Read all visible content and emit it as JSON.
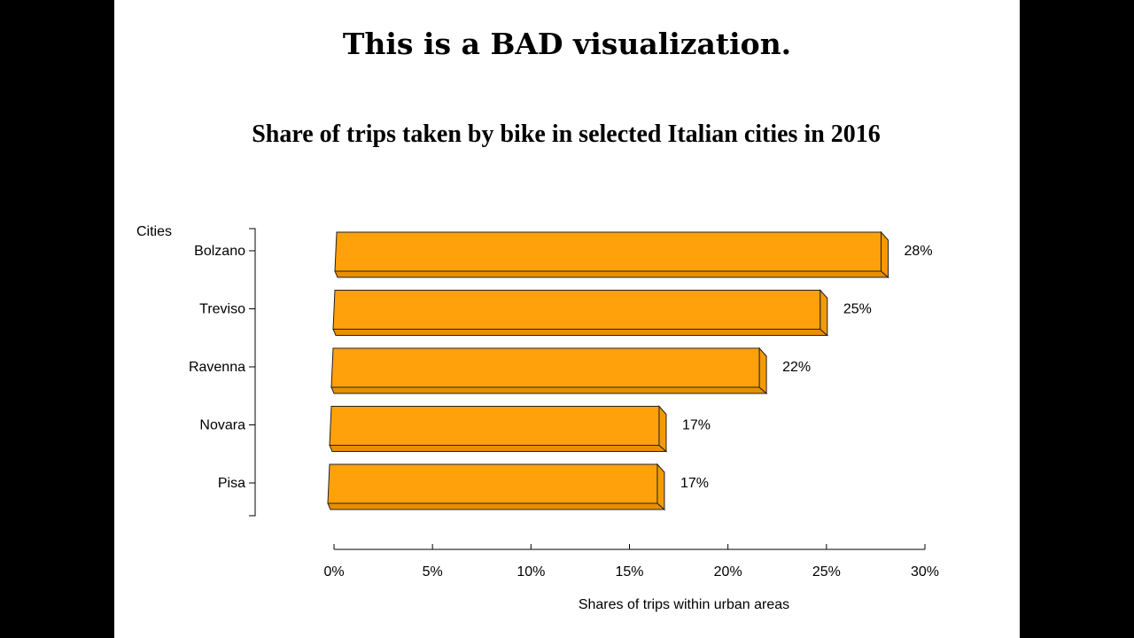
{
  "headline": "This is a BAD visualization.",
  "chart_data": {
    "type": "bar",
    "orientation": "horizontal",
    "style": "3d",
    "title": "Share of trips taken by bike in selected Italian cities in 2016",
    "ylabel": "Cities",
    "xlabel": "Shares of trips within urban areas",
    "categories": [
      "Bolzano",
      "Treviso",
      "Ravenna",
      "Novara",
      "Pisa"
    ],
    "values": [
      28,
      25,
      22,
      17,
      17
    ],
    "value_labels": [
      "28%",
      "25%",
      "22%",
      "17%",
      "17%"
    ],
    "xlim": [
      0,
      30
    ],
    "xticks": [
      0,
      5,
      10,
      15,
      20,
      25,
      30
    ],
    "xtick_labels": [
      "0%",
      "5%",
      "10%",
      "15%",
      "20%",
      "25%",
      "30%"
    ],
    "grid": false,
    "bar_color": "#FFA10A"
  }
}
